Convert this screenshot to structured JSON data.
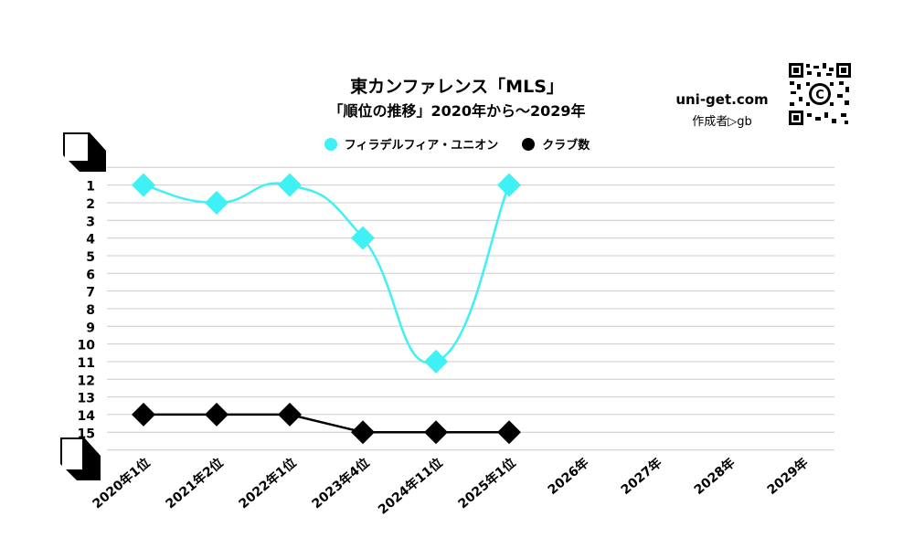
{
  "header": {
    "title": "東カンファレンス「MLS」",
    "subtitle": "「順位の推移」2020年から～2029年",
    "brand": "uni-get.com",
    "author": "作成者▷gb"
  },
  "colors": {
    "series1": "#3ff0f5",
    "series2": "#000000",
    "grid": "#cccccc"
  },
  "icons": {
    "qr": "qr-code-icon",
    "top_marker": "rank-top-marker-icon",
    "bottom_marker": "rank-bottom-marker-icon"
  },
  "chart_data": {
    "type": "line",
    "title": "東カンファレンス「MLS」",
    "subtitle": "「順位の推移」2020年から～2029年",
    "categories": [
      "2020年1位",
      "2021年2位",
      "2022年1位",
      "2023年4位",
      "2024年11位",
      "2025年1位",
      "2026年",
      "2027年",
      "2028年",
      "2029年"
    ],
    "ytick_labels": [
      "1",
      "2",
      "3",
      "4",
      "5",
      "6",
      "7",
      "8",
      "9",
      "10",
      "11",
      "12",
      "13",
      "14",
      "15"
    ],
    "ylim": [
      0,
      16
    ],
    "y_inverted": true,
    "grid": true,
    "legend_position": "top-center",
    "series": [
      {
        "name": "フィラデルフィア・ユニオン",
        "values": [
          1,
          2,
          1,
          4,
          11,
          1,
          null,
          null,
          null,
          null
        ],
        "marker": "diamond",
        "smooth": true
      },
      {
        "name": "クラブ数",
        "values": [
          14,
          14,
          14,
          15,
          15,
          15,
          null,
          null,
          null,
          null
        ],
        "marker": "diamond",
        "smooth": false
      }
    ]
  }
}
